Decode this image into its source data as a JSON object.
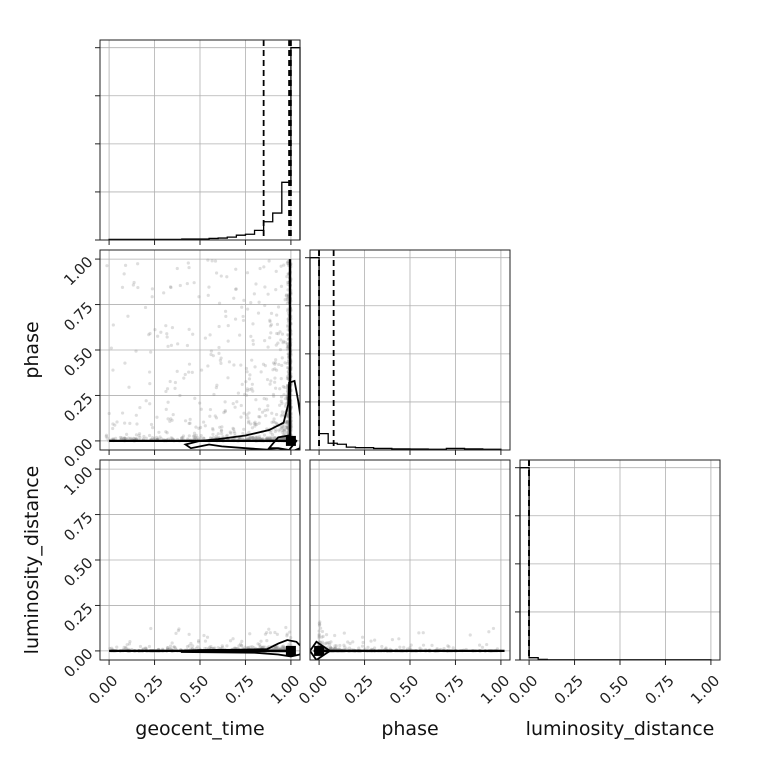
{
  "chart_data": {
    "type": "corner",
    "parameters": [
      "geocent_time",
      "phase",
      "luminosity_distance"
    ],
    "ticks": [
      "0.00",
      "0.25",
      "0.50",
      "0.75",
      "1.00"
    ],
    "tick_values": [
      0,
      0.25,
      0.5,
      0.75,
      1.0
    ],
    "range": [
      -0.05,
      1.05
    ],
    "grid": true,
    "diagonal": [
      {
        "parameter": "geocent_time",
        "bins": [
          [
            0.0,
            0.05,
            0.003
          ],
          [
            0.05,
            0.1,
            0.003
          ],
          [
            0.1,
            0.15,
            0.003
          ],
          [
            0.15,
            0.2,
            0.003
          ],
          [
            0.2,
            0.25,
            0.003
          ],
          [
            0.25,
            0.3,
            0.003
          ],
          [
            0.3,
            0.35,
            0.003
          ],
          [
            0.35,
            0.4,
            0.003
          ],
          [
            0.4,
            0.45,
            0.005
          ],
          [
            0.45,
            0.5,
            0.005
          ],
          [
            0.5,
            0.55,
            0.005
          ],
          [
            0.55,
            0.6,
            0.008
          ],
          [
            0.6,
            0.65,
            0.01
          ],
          [
            0.65,
            0.7,
            0.015
          ],
          [
            0.7,
            0.75,
            0.025
          ],
          [
            0.75,
            0.8,
            0.03
          ],
          [
            0.8,
            0.85,
            0.05
          ],
          [
            0.85,
            0.9,
            0.095
          ],
          [
            0.9,
            0.95,
            0.14
          ],
          [
            0.95,
            1.0,
            0.3
          ],
          [
            1.0,
            1.05,
            1.0
          ]
        ],
        "quantiles": [
          0.85,
          0.99,
          1.0
        ],
        "ylim": [
          0,
          1.04
        ]
      },
      {
        "parameter": "phase",
        "bins": [
          [
            -0.05,
            0.0,
            1.0
          ],
          [
            0.0,
            0.05,
            0.085
          ],
          [
            0.05,
            0.1,
            0.035
          ],
          [
            0.1,
            0.15,
            0.03
          ],
          [
            0.15,
            0.2,
            0.015
          ],
          [
            0.2,
            0.3,
            0.012
          ],
          [
            0.3,
            0.4,
            0.008
          ],
          [
            0.4,
            0.5,
            0.006
          ],
          [
            0.5,
            0.6,
            0.005
          ],
          [
            0.6,
            0.7,
            0.004
          ],
          [
            0.7,
            0.8,
            0.008
          ],
          [
            0.8,
            0.9,
            0.006
          ],
          [
            0.9,
            1.0,
            0.004
          ]
        ],
        "quantiles": [
          0.0,
          0.0,
          0.08
        ],
        "ylim": [
          0,
          1.04
        ]
      },
      {
        "parameter": "luminosity_distance",
        "bins": [
          [
            -0.05,
            0.0,
            1.0
          ],
          [
            0.0,
            0.05,
            0.012
          ],
          [
            0.05,
            0.1,
            0.003
          ],
          [
            0.1,
            1.0,
            0.001
          ]
        ],
        "quantiles": [
          0.0,
          0.0,
          0.0
        ],
        "ylim": [
          0,
          1.04
        ]
      }
    ],
    "panels": [
      {
        "x": "geocent_time",
        "y": "phase",
        "peak": [
          1.0,
          0.0
        ],
        "contours": [
          [
            [
              0.88,
              -0.04
            ],
            [
              0.93,
              0.02
            ],
            [
              0.99,
              0.03
            ],
            [
              1.03,
              0.0
            ],
            [
              0.99,
              -0.05
            ],
            [
              0.93,
              -0.04
            ],
            [
              0.88,
              -0.04
            ]
          ],
          [
            [
              0.42,
              -0.02
            ],
            [
              0.5,
              0.0
            ],
            [
              0.6,
              0.01
            ],
            [
              0.75,
              0.03
            ],
            [
              0.88,
              0.06
            ],
            [
              0.96,
              0.1
            ],
            [
              0.985,
              0.2
            ],
            [
              0.99,
              0.32
            ],
            [
              1.02,
              0.33
            ],
            [
              1.04,
              0.22
            ],
            [
              1.06,
              0.08
            ],
            [
              1.05,
              -0.04
            ],
            [
              1.0,
              -0.06
            ],
            [
              0.9,
              -0.05
            ],
            [
              0.75,
              -0.04
            ],
            [
              0.62,
              -0.03
            ],
            [
              0.55,
              -0.02
            ],
            [
              0.5,
              -0.03
            ],
            [
              0.45,
              -0.04
            ],
            [
              0.42,
              -0.02
            ]
          ]
        ]
      },
      {
        "x": "geocent_time",
        "y": "luminosity_distance",
        "peak": [
          1.0,
          0.0
        ],
        "contours": [
          [
            [
              0.4,
              -0.006
            ],
            [
              0.6,
              -0.008
            ],
            [
              0.8,
              -0.01
            ],
            [
              0.93,
              -0.02
            ],
            [
              1.0,
              -0.03
            ],
            [
              1.05,
              -0.02
            ],
            [
              1.06,
              0.02
            ],
            [
              1.03,
              0.05
            ],
            [
              0.98,
              0.06
            ],
            [
              0.93,
              0.04
            ],
            [
              0.87,
              0.01
            ],
            [
              0.7,
              0.006
            ],
            [
              0.5,
              0.005
            ],
            [
              0.4,
              0.0
            ],
            [
              0.4,
              -0.006
            ]
          ]
        ]
      },
      {
        "x": "phase",
        "y": "luminosity_distance",
        "peak": [
          0.0,
          0.0
        ],
        "contours": [
          [
            [
              -0.05,
              0.0
            ],
            [
              -0.015,
              0.05
            ],
            [
              0.03,
              0.02
            ],
            [
              0.06,
              0.0
            ],
            [
              0.03,
              -0.02
            ],
            [
              -0.015,
              -0.05
            ],
            [
              -0.05,
              0.0
            ]
          ]
        ]
      }
    ]
  }
}
